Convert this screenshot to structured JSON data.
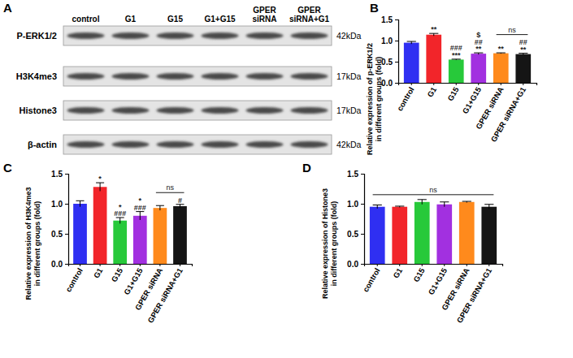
{
  "blot": {
    "panel": "A",
    "lanes": [
      "control",
      "G1",
      "G15",
      "G1+G15",
      "GPER siRNA",
      "GPER siRNA+G1"
    ],
    "rows": [
      {
        "label": "P-ERK1/2",
        "size": "42kDa"
      },
      {
        "label": "H3K4me3",
        "size": "17kDa"
      },
      {
        "label": "Histone3",
        "size": "17kDa"
      },
      {
        "label": "β-actin",
        "size": "42kDa"
      }
    ]
  },
  "chart_data": [
    {
      "type": "bar",
      "panel": "B",
      "y_label": [
        "Relative expression of p-ERK1/2",
        "in different groups (fold)"
      ],
      "categories": [
        "control",
        "G1",
        "G15",
        "G1+G15",
        "GPER siRNA",
        "GPER siRNA+G1"
      ],
      "values": [
        0.95,
        1.14,
        0.55,
        0.69,
        0.7,
        0.68
      ],
      "errors": [
        0.03,
        0.03,
        0.01,
        0.02,
        0.01,
        0.02
      ],
      "colors": [
        "#2f2ff2",
        "#f2252a",
        "#27c93a",
        "#a230e0",
        "#ff8a1c",
        "#151515"
      ],
      "ylim": [
        0,
        1.5
      ],
      "yticks": [
        {
          "value": 0,
          "label": "0.0"
        },
        {
          "value": 0.5,
          "label": "0.5"
        },
        {
          "value": 1,
          "label": "1.0"
        },
        {
          "value": 1.5,
          "label": "1.5"
        }
      ],
      "annotations": [
        [],
        [
          "**"
        ],
        [
          "###",
          "***"
        ],
        [
          "$",
          "##",
          "**"
        ],
        [
          "**"
        ],
        [
          "##",
          "**"
        ]
      ],
      "bracket_annotations": [
        {
          "from": 4,
          "to": 5,
          "text": "ns"
        }
      ]
    },
    {
      "type": "bar",
      "panel": "C",
      "y_label": [
        "Relative expression of H3K4me3",
        "in different groups (fold)"
      ],
      "categories": [
        "control",
        "G1",
        "G15",
        "G1+G15",
        "GPER siRNA",
        "GPER siRNA+G1"
      ],
      "values": [
        1.0,
        1.28,
        0.72,
        0.8,
        0.93,
        0.96
      ],
      "errors": [
        0.05,
        0.07,
        0.05,
        0.07,
        0.04,
        0.03
      ],
      "colors": [
        "#2f2ff2",
        "#f2252a",
        "#27c93a",
        "#a230e0",
        "#ff8a1c",
        "#151515"
      ],
      "ylim": [
        0,
        1.5
      ],
      "yticks": [
        {
          "value": 0,
          "label": "0.0"
        },
        {
          "value": 0.5,
          "label": "0.5"
        },
        {
          "value": 1,
          "label": "1.0"
        },
        {
          "value": 1.5,
          "label": "1.5"
        }
      ],
      "annotations": [
        [],
        [
          "*"
        ],
        [
          "*",
          "###"
        ],
        [
          "*",
          "###"
        ],
        [],
        [
          "#"
        ]
      ],
      "bracket_annotations": [
        {
          "from": 4,
          "to": 5,
          "text": "ns"
        }
      ]
    },
    {
      "type": "bar",
      "panel": "D",
      "y_label": [
        "Relative expression of Histone3",
        "in different groups (fold)"
      ],
      "categories": [
        "control",
        "G1",
        "G15",
        "G1+G15",
        "GPER siRNA",
        "GPER siRNA+G1"
      ],
      "values": [
        0.95,
        0.95,
        1.03,
        0.99,
        1.03,
        0.95
      ],
      "errors": [
        0.03,
        0.01,
        0.04,
        0.04,
        0.01,
        0.04
      ],
      "colors": [
        "#2f2ff2",
        "#f2252a",
        "#27c93a",
        "#a230e0",
        "#ff8a1c",
        "#151515"
      ],
      "ylim": [
        0,
        1.5
      ],
      "yticks": [
        {
          "value": 0,
          "label": "0.0"
        },
        {
          "value": 0.5,
          "label": "0.5"
        },
        {
          "value": 1,
          "label": "1.0"
        },
        {
          "value": 1.5,
          "label": "1.5"
        }
      ],
      "annotations": [
        [],
        [],
        [],
        [],
        [],
        []
      ],
      "bracket_annotations": [
        {
          "from": 0,
          "to": 5,
          "text": "ns"
        }
      ]
    }
  ]
}
